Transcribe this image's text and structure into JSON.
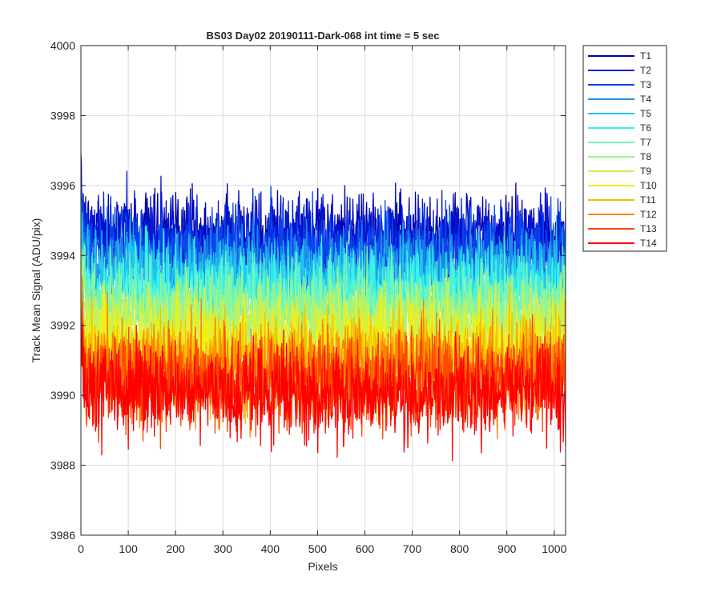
{
  "chart_data": {
    "type": "line",
    "title": "BS03 Day02 20190111-Dark-068 int time = 5 sec",
    "xlabel": "Pixels",
    "ylabel": "Track Mean Signal (ADU/pix)",
    "xlim": [
      0,
      1024
    ],
    "ylim": [
      3986,
      4000
    ],
    "xticks": [
      0,
      100,
      200,
      300,
      400,
      500,
      600,
      700,
      800,
      900,
      1000
    ],
    "yticks": [
      3986,
      3988,
      3990,
      3992,
      3994,
      3996,
      3998,
      4000
    ],
    "grid": true,
    "legend_location": "outside-right-top",
    "points_per_series": 1024,
    "series": [
      {
        "name": "T1",
        "color": "#0000b4",
        "mean": 3994.6,
        "noise_amplitude": 1.0
      },
      {
        "name": "T2",
        "color": "#0019d6",
        "mean": 3994.4,
        "noise_amplitude": 1.0
      },
      {
        "name": "T3",
        "color": "#0a44f0",
        "mean": 3994.1,
        "noise_amplitude": 1.0
      },
      {
        "name": "T4",
        "color": "#1f8ee8",
        "mean": 3993.6,
        "noise_amplitude": 1.0
      },
      {
        "name": "T5",
        "color": "#22c6f0",
        "mean": 3993.3,
        "noise_amplitude": 1.0
      },
      {
        "name": "T6",
        "color": "#3cf2e6",
        "mean": 3993.0,
        "noise_amplitude": 1.0
      },
      {
        "name": "T7",
        "color": "#6ef5c0",
        "mean": 3992.6,
        "noise_amplitude": 1.0
      },
      {
        "name": "T8",
        "color": "#99f58c",
        "mean": 3992.3,
        "noise_amplitude": 1.0
      },
      {
        "name": "T9",
        "color": "#cdf050",
        "mean": 3991.9,
        "noise_amplitude": 1.0
      },
      {
        "name": "T10",
        "color": "#f0f014",
        "mean": 3991.4,
        "noise_amplitude": 1.1
      },
      {
        "name": "T11",
        "color": "#f5c000",
        "mean": 3991.0,
        "noise_amplitude": 1.1
      },
      {
        "name": "T12",
        "color": "#ff8400",
        "mean": 3990.7,
        "noise_amplitude": 1.1
      },
      {
        "name": "T13",
        "color": "#ff4400",
        "mean": 3990.4,
        "noise_amplitude": 1.1
      },
      {
        "name": "T14",
        "color": "#ff0000",
        "mean": 3990.1,
        "noise_amplitude": 1.1
      }
    ]
  }
}
